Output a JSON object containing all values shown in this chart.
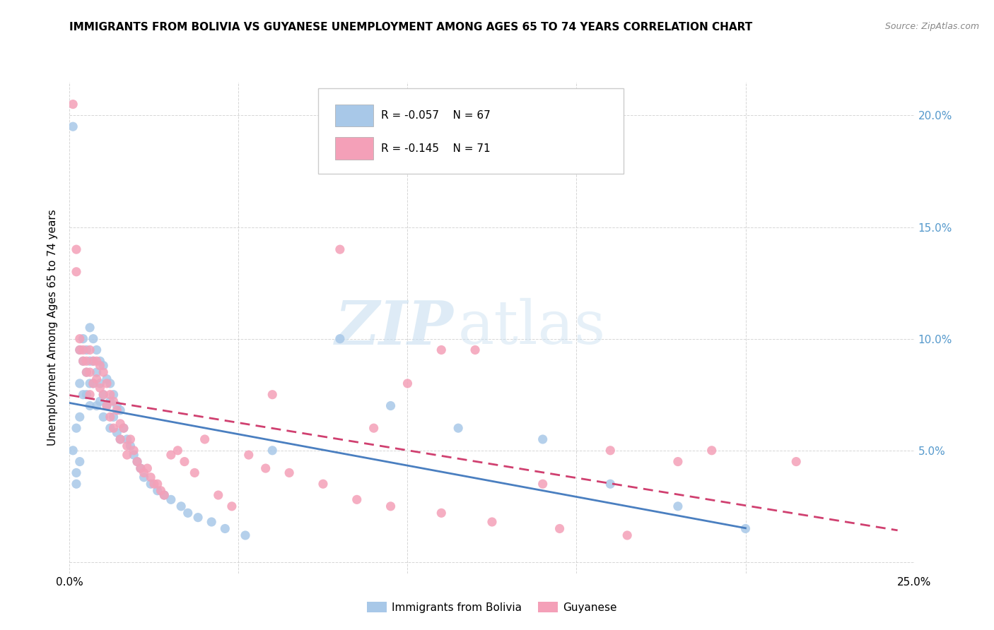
{
  "title": "IMMIGRANTS FROM BOLIVIA VS GUYANESE UNEMPLOYMENT AMONG AGES 65 TO 74 YEARS CORRELATION CHART",
  "source": "Source: ZipAtlas.com",
  "ylabel": "Unemployment Among Ages 65 to 74 years",
  "xlim": [
    0.0,
    0.25
  ],
  "ylim": [
    -0.005,
    0.215
  ],
  "legend1_label": "Immigrants from Bolivia",
  "legend2_label": "Guyanese",
  "r1": -0.057,
  "n1": 67,
  "r2": -0.145,
  "n2": 71,
  "color_bolivia": "#a8c8e8",
  "color_guyanese": "#f4a0b8",
  "color_line_bolivia": "#4a7fc0",
  "color_line_guyanese": "#d04070",
  "watermark_zip": "ZIP",
  "watermark_atlas": "atlas",
  "bolivia_x": [
    0.001,
    0.001,
    0.002,
    0.002,
    0.002,
    0.003,
    0.003,
    0.003,
    0.003,
    0.004,
    0.004,
    0.004,
    0.005,
    0.005,
    0.005,
    0.006,
    0.006,
    0.006,
    0.006,
    0.007,
    0.007,
    0.007,
    0.008,
    0.008,
    0.008,
    0.009,
    0.009,
    0.009,
    0.01,
    0.01,
    0.01,
    0.011,
    0.011,
    0.012,
    0.012,
    0.012,
    0.013,
    0.013,
    0.014,
    0.014,
    0.015,
    0.015,
    0.016,
    0.017,
    0.018,
    0.019,
    0.02,
    0.021,
    0.022,
    0.024,
    0.026,
    0.028,
    0.03,
    0.033,
    0.035,
    0.038,
    0.042,
    0.046,
    0.052,
    0.06,
    0.08,
    0.095,
    0.115,
    0.14,
    0.16,
    0.18,
    0.2
  ],
  "bolivia_y": [
    0.195,
    0.05,
    0.04,
    0.06,
    0.035,
    0.065,
    0.08,
    0.095,
    0.045,
    0.075,
    0.09,
    0.1,
    0.085,
    0.095,
    0.075,
    0.105,
    0.09,
    0.08,
    0.07,
    0.1,
    0.09,
    0.08,
    0.095,
    0.085,
    0.07,
    0.09,
    0.08,
    0.072,
    0.088,
    0.075,
    0.065,
    0.082,
    0.07,
    0.08,
    0.072,
    0.06,
    0.075,
    0.065,
    0.07,
    0.058,
    0.068,
    0.055,
    0.06,
    0.055,
    0.052,
    0.048,
    0.045,
    0.042,
    0.038,
    0.035,
    0.032,
    0.03,
    0.028,
    0.025,
    0.022,
    0.02,
    0.018,
    0.015,
    0.012,
    0.05,
    0.1,
    0.07,
    0.06,
    0.055,
    0.035,
    0.025,
    0.015
  ],
  "guyanese_x": [
    0.001,
    0.002,
    0.002,
    0.003,
    0.003,
    0.004,
    0.004,
    0.005,
    0.005,
    0.006,
    0.006,
    0.006,
    0.007,
    0.007,
    0.008,
    0.008,
    0.009,
    0.009,
    0.01,
    0.01,
    0.011,
    0.011,
    0.012,
    0.012,
    0.013,
    0.013,
    0.014,
    0.015,
    0.015,
    0.016,
    0.017,
    0.017,
    0.018,
    0.019,
    0.02,
    0.021,
    0.022,
    0.023,
    0.024,
    0.025,
    0.026,
    0.027,
    0.028,
    0.03,
    0.032,
    0.034,
    0.037,
    0.04,
    0.044,
    0.048,
    0.053,
    0.058,
    0.065,
    0.075,
    0.085,
    0.095,
    0.11,
    0.125,
    0.145,
    0.165,
    0.19,
    0.215,
    0.06,
    0.08,
    0.1,
    0.12,
    0.14,
    0.09,
    0.11,
    0.16,
    0.18
  ],
  "guyanese_y": [
    0.205,
    0.13,
    0.14,
    0.095,
    0.1,
    0.095,
    0.09,
    0.09,
    0.085,
    0.095,
    0.085,
    0.075,
    0.09,
    0.08,
    0.09,
    0.082,
    0.088,
    0.078,
    0.085,
    0.075,
    0.08,
    0.07,
    0.075,
    0.065,
    0.072,
    0.06,
    0.068,
    0.062,
    0.055,
    0.06,
    0.052,
    0.048,
    0.055,
    0.05,
    0.045,
    0.042,
    0.04,
    0.042,
    0.038,
    0.035,
    0.035,
    0.032,
    0.03,
    0.048,
    0.05,
    0.045,
    0.04,
    0.055,
    0.03,
    0.025,
    0.048,
    0.042,
    0.04,
    0.035,
    0.028,
    0.025,
    0.022,
    0.018,
    0.015,
    0.012,
    0.05,
    0.045,
    0.075,
    0.14,
    0.08,
    0.095,
    0.035,
    0.06,
    0.095,
    0.05,
    0.045
  ]
}
